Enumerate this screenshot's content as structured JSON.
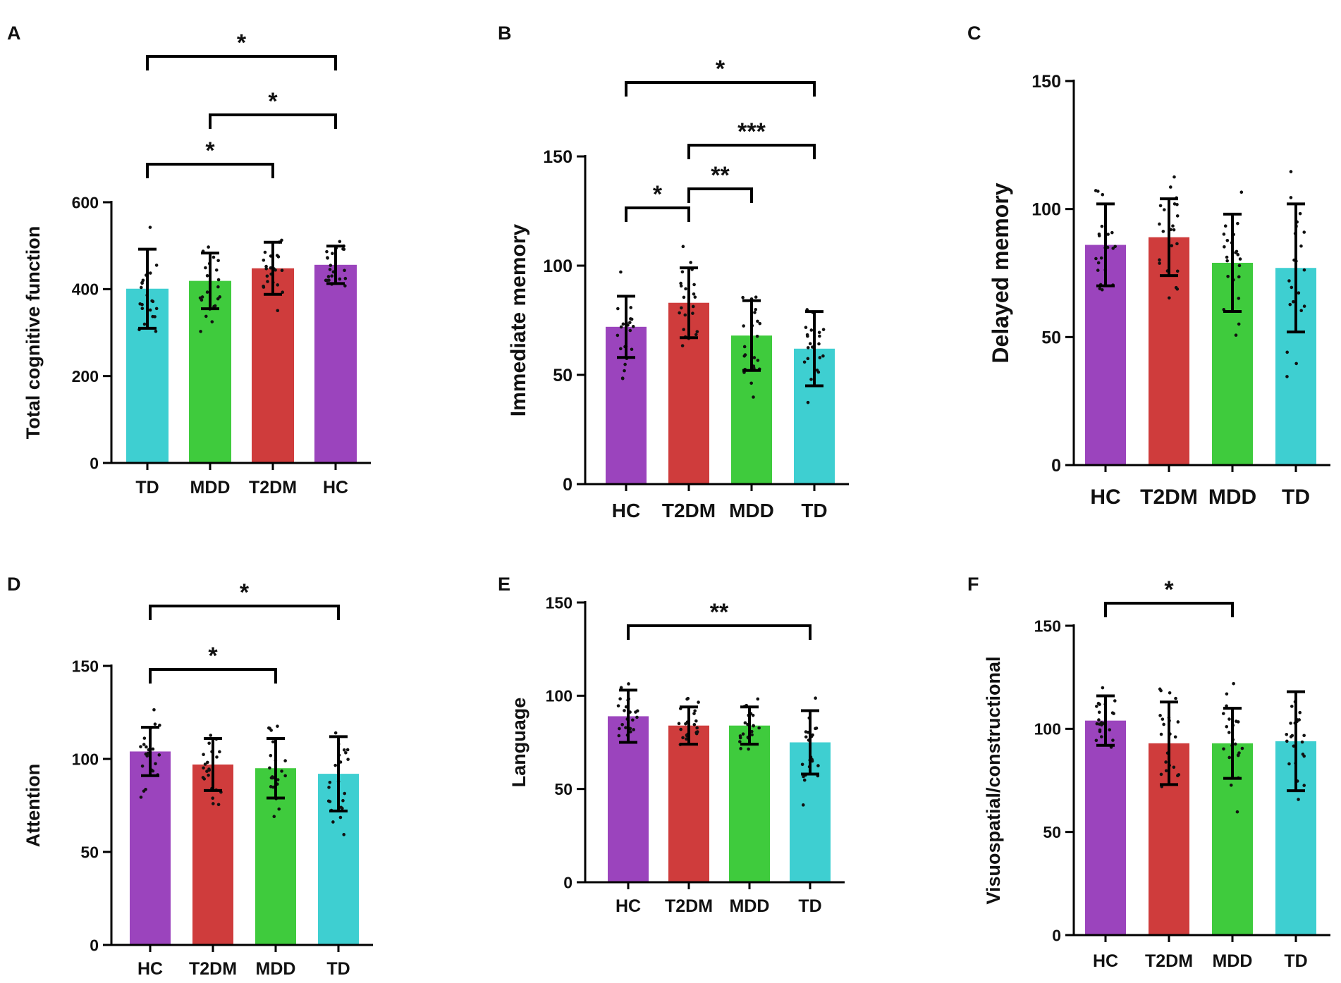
{
  "colors": {
    "HC": "#9B44BD",
    "T2DM": "#CF3C3C",
    "MDD": "#3FCB3D",
    "TD": "#3ECFD1",
    "axis": "#000000"
  },
  "chart_data": [
    {
      "panel": "A",
      "type": "bar",
      "ylabel": "Total cognitive function",
      "categories": [
        "TD",
        "MDD",
        "T2DM",
        "HC"
      ],
      "values": [
        401,
        419,
        448,
        456
      ],
      "error": [
        91,
        64,
        60,
        43
      ],
      "ylim": [
        0,
        600
      ],
      "yticks": [
        0,
        200,
        400,
        600
      ],
      "significance": [
        {
          "from": "TD",
          "to": "T2DM",
          "label": "*"
        },
        {
          "from": "MDD",
          "to": "HC",
          "label": "*"
        },
        {
          "from": "TD",
          "to": "HC",
          "label": "*"
        }
      ]
    },
    {
      "panel": "B",
      "type": "bar",
      "ylabel": "Immediate memory",
      "categories": [
        "HC",
        "T2DM",
        "MDD",
        "TD"
      ],
      "values": [
        72,
        83,
        68,
        62
      ],
      "error": [
        14,
        16,
        16,
        17
      ],
      "ylim": [
        0,
        150
      ],
      "yticks": [
        0,
        50,
        100,
        150
      ],
      "significance": [
        {
          "from": "HC",
          "to": "T2DM",
          "label": "*"
        },
        {
          "from": "T2DM",
          "to": "MDD",
          "label": "**"
        },
        {
          "from": "T2DM",
          "to": "TD",
          "label": "***"
        },
        {
          "from": "HC",
          "to": "TD",
          "label": "*"
        }
      ]
    },
    {
      "panel": "C",
      "type": "bar",
      "ylabel": "Delayed memory",
      "categories": [
        "HC",
        "T2DM",
        "MDD",
        "TD"
      ],
      "values": [
        86,
        89,
        79,
        77
      ],
      "error": [
        16,
        15,
        19,
        25
      ],
      "ylim": [
        0,
        150
      ],
      "yticks": [
        0,
        50,
        100,
        150
      ],
      "significance": []
    },
    {
      "panel": "D",
      "type": "bar",
      "ylabel": "Attention",
      "categories": [
        "HC",
        "T2DM",
        "MDD",
        "TD"
      ],
      "values": [
        104,
        97,
        95,
        92
      ],
      "error": [
        13,
        14,
        16,
        20
      ],
      "ylim": [
        0,
        150
      ],
      "yticks": [
        0,
        50,
        100,
        150
      ],
      "significance": [
        {
          "from": "HC",
          "to": "MDD",
          "label": "*"
        },
        {
          "from": "HC",
          "to": "TD",
          "label": "*"
        }
      ]
    },
    {
      "panel": "E",
      "type": "bar",
      "ylabel": "Language",
      "categories": [
        "HC",
        "T2DM",
        "MDD",
        "TD"
      ],
      "values": [
        89,
        84,
        84,
        75
      ],
      "error": [
        14,
        10,
        10,
        17
      ],
      "ylim": [
        0,
        150
      ],
      "yticks": [
        0,
        50,
        100,
        150
      ],
      "significance": [
        {
          "from": "HC",
          "to": "TD",
          "label": "**"
        }
      ]
    },
    {
      "panel": "F",
      "type": "bar",
      "ylabel": "Visuospatial/constructional",
      "categories": [
        "HC",
        "T2DM",
        "MDD",
        "TD"
      ],
      "values": [
        104,
        93,
        93,
        94
      ],
      "error": [
        12,
        20,
        17,
        24
      ],
      "ylim": [
        0,
        150
      ],
      "yticks": [
        0,
        50,
        100,
        150
      ],
      "significance": [
        {
          "from": "HC",
          "to": "MDD",
          "label": "*"
        }
      ]
    }
  ]
}
